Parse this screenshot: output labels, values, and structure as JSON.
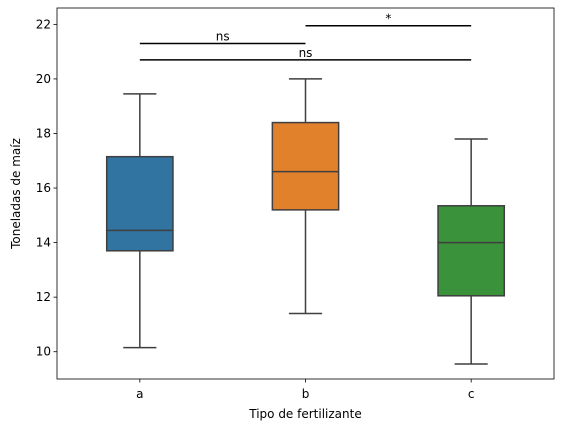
{
  "chart_data": {
    "type": "box",
    "title": "",
    "xlabel": "Tipo de fertilizante",
    "ylabel": "Toneladas de maíz",
    "ylim": [
      9.0,
      22.6
    ],
    "yticks": [
      10,
      12,
      14,
      16,
      18,
      20,
      22
    ],
    "ytick_labels": [
      "10",
      "12",
      "14",
      "16",
      "18",
      "20",
      "22"
    ],
    "grid": false,
    "categories": [
      "a",
      "b",
      "c"
    ],
    "boxes": [
      {
        "category": "a",
        "whisker_low": 10.15,
        "q1": 13.7,
        "median": 14.45,
        "q3": 17.15,
        "whisker_high": 19.45,
        "color": "#3274a1"
      },
      {
        "category": "b",
        "whisker_low": 11.4,
        "q1": 15.2,
        "median": 16.6,
        "q3": 18.4,
        "whisker_high": 20.0,
        "color": "#e1812c"
      },
      {
        "category": "c",
        "whisker_low": 9.55,
        "q1": 12.05,
        "median": 14.0,
        "q3": 15.35,
        "whisker_high": 17.8,
        "color": "#3a923a"
      }
    ],
    "significance": [
      {
        "from": "b",
        "to": "c",
        "y": 21.95,
        "label": "*"
      },
      {
        "from": "a",
        "to": "b",
        "y": 21.3,
        "label": "ns"
      },
      {
        "from": "a",
        "to": "c",
        "y": 20.7,
        "label": "ns"
      }
    ]
  }
}
